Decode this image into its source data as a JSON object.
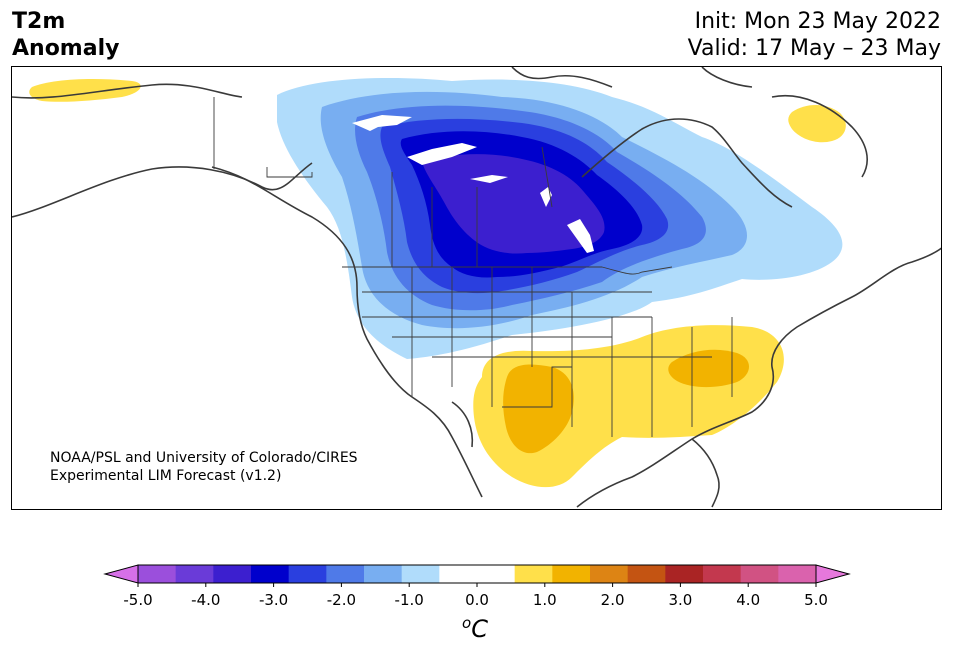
{
  "header": {
    "title_line1": "T2m",
    "title_line2": "Anomaly",
    "init": "Init: Mon 23 May 2022",
    "valid": "Valid: 17 May – 23 May"
  },
  "credit": {
    "line1": "NOAA/PSL and University of Colorado/CIRES",
    "line2": "Experimental LIM Forecast (v1.2)"
  },
  "colorbar": {
    "unit": "C",
    "unit_prefix": "o",
    "tick_labels": [
      "-5.0",
      "-4.0",
      "-3.0",
      "-2.0",
      "-1.0",
      "0.0",
      "1.0",
      "2.0",
      "3.0",
      "4.0",
      "5.0"
    ],
    "colors": [
      "#9b4fdc",
      "#6a3bd8",
      "#3c1fcf",
      "#0000cc",
      "#2a3fdf",
      "#4f7ae8",
      "#78aef1",
      "#b0dcfb",
      "#ffffff",
      "#ffffff",
      "#ffe04a",
      "#f2b300",
      "#dd8414",
      "#c45412",
      "#aa2424",
      "#c3384e",
      "#d15283",
      "#da62ad"
    ],
    "under_color": "#d670e8",
    "over_color": "#e678dc"
  },
  "map_colors": {
    "c_m05": "#b0dcfb",
    "c_m10": "#78aef1",
    "c_m15": "#4f7ae8",
    "c_m20": "#2a3fdf",
    "c_m25": "#0000cc",
    "c_m30": "#3c1fcf",
    "c_p05": "#ffe04a",
    "c_p10": "#f2b300"
  }
}
